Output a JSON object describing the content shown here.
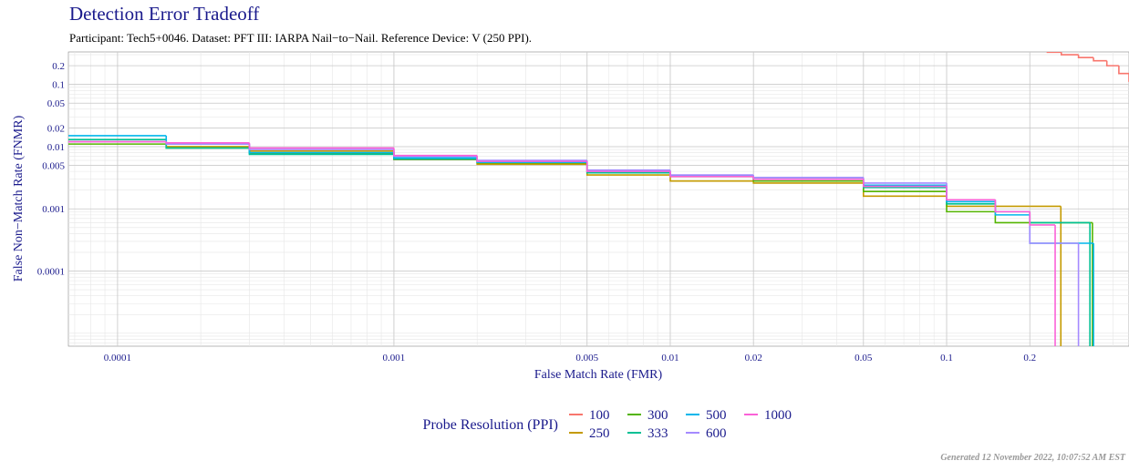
{
  "chart_data": {
    "type": "step",
    "title": "Detection Error Tradeoff",
    "subtitle": "Participant: Tech5+0046. Dataset: PFT III: IARPA Nail−to−Nail. Reference Device: V (250 PPI).",
    "x_label": "False Match Rate (FMR)",
    "y_label": "False Non−Match Rate (FNMR)",
    "legend_title": "Probe Resolution (PPI)",
    "footer": "Generated 12 November 2022, 10:07:52 AM EST",
    "xscale": "log",
    "yscale": "log",
    "grid": true,
    "minor_grid": true,
    "legend_position": "bottom",
    "xlim": [
      6.64e-05,
      0.457
    ],
    "ylim": [
      6.2e-06,
      0.333
    ],
    "xticks": [
      0.0001,
      0.001,
      0.005,
      0.01,
      0.02,
      0.05,
      0.1,
      0.2
    ],
    "yticks": [
      0.0001,
      0.001,
      0.005,
      0.01,
      0.02,
      0.05,
      0.1,
      0.2
    ],
    "series": [
      {
        "name": "100",
        "color": "#F8766D",
        "x": [
          0.23,
          0.26,
          0.3,
          0.34,
          0.38,
          0.42,
          0.457
        ],
        "values": [
          0.33,
          0.3,
          0.27,
          0.24,
          0.2,
          0.15,
          0.11
        ]
      },
      {
        "name": "250",
        "color": "#C49A00",
        "x": [
          6.64e-05,
          0.00015,
          0.0003,
          0.001,
          0.002,
          0.005,
          0.01,
          0.02,
          0.05,
          0.1,
          0.15,
          0.2,
          0.259
        ],
        "values": [
          0.012,
          0.01,
          0.0085,
          0.0062,
          0.0052,
          0.0035,
          0.0028,
          0.0026,
          0.0016,
          0.0011,
          0.0011,
          0.0011,
          1e-06
        ]
      },
      {
        "name": "300",
        "color": "#53B400",
        "x": [
          6.64e-05,
          0.00015,
          0.0003,
          0.001,
          0.002,
          0.005,
          0.01,
          0.02,
          0.05,
          0.1,
          0.15,
          0.2,
          0.337
        ],
        "values": [
          0.011,
          0.0095,
          0.0078,
          0.0065,
          0.0055,
          0.0038,
          0.0033,
          0.0028,
          0.0019,
          0.0009,
          0.0006,
          0.0006,
          1e-06
        ]
      },
      {
        "name": "333",
        "color": "#00C094",
        "x": [
          6.64e-05,
          0.00015,
          0.0003,
          0.001,
          0.002,
          0.005,
          0.01,
          0.02,
          0.05,
          0.1,
          0.15,
          0.2,
          0.33
        ],
        "values": [
          0.013,
          0.0095,
          0.0075,
          0.0063,
          0.0058,
          0.0038,
          0.0034,
          0.003,
          0.0022,
          0.0012,
          0.0009,
          0.0006,
          1e-06
        ]
      },
      {
        "name": "500",
        "color": "#00B6EB",
        "x": [
          6.64e-05,
          0.00015,
          0.0003,
          0.001,
          0.002,
          0.005,
          0.01,
          0.02,
          0.05,
          0.1,
          0.15,
          0.2,
          0.34
        ],
        "values": [
          0.015,
          0.011,
          0.008,
          0.0066,
          0.0056,
          0.004,
          0.0034,
          0.003,
          0.0024,
          0.0013,
          0.0008,
          0.00028,
          1e-06
        ]
      },
      {
        "name": "600",
        "color": "#A58AFF",
        "x": [
          6.64e-05,
          0.00015,
          0.0003,
          0.001,
          0.002,
          0.005,
          0.01,
          0.02,
          0.05,
          0.1,
          0.15,
          0.2,
          0.3
        ],
        "values": [
          0.012,
          0.011,
          0.009,
          0.007,
          0.006,
          0.0042,
          0.0035,
          0.0032,
          0.0026,
          0.0014,
          0.0009,
          0.00028,
          1e-06
        ]
      },
      {
        "name": "1000",
        "color": "#FB61D7",
        "x": [
          6.64e-05,
          0.00015,
          0.0003,
          0.001,
          0.002,
          0.005,
          0.01,
          0.02,
          0.05,
          0.1,
          0.15,
          0.2,
          0.247
        ],
        "values": [
          0.012,
          0.0115,
          0.0095,
          0.0072,
          0.0058,
          0.004,
          0.0033,
          0.003,
          0.0023,
          0.0014,
          0.0009,
          0.00055,
          1e-06
        ]
      }
    ]
  }
}
